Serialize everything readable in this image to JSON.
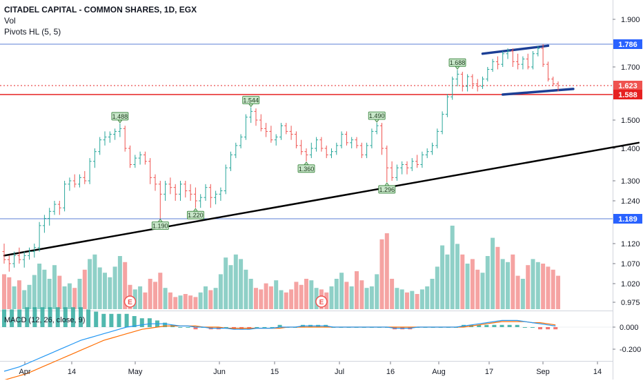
{
  "header": {
    "symbol": "CITADEL CAPITAL - COMMON SHARES, 1D, EGX",
    "vol_label": "Vol",
    "pivots_label": "Pivots HL (5, 5)"
  },
  "macd_label": "MACD (12, 26, close, 9)",
  "colors": {
    "up": "#26a69a",
    "down": "#ef5350",
    "vol_up": "#8fd0c7",
    "vol_down": "#f5a3a2",
    "hline_blue": "#5b7fd6",
    "hline_red": "#e62020",
    "trend": "#000000",
    "channel": "#1c3f95",
    "macd": "#2196f3",
    "signal": "#ff6d00"
  },
  "chart_data": {
    "type": "candlestick",
    "title": "CITADEL CAPITAL - COMMON SHARES, 1D, EGX",
    "x_ticks": [
      "Apr",
      "14",
      "May",
      "Jun",
      "15",
      "Jul",
      "16",
      "Aug",
      "17",
      "Sep",
      "14"
    ],
    "y_ticks": [
      "1.900",
      "1.700",
      "1.500",
      "1.400",
      "1.300",
      "1.240",
      "1.120",
      "1.070",
      "1.020",
      "0.975"
    ],
    "macd_y_ticks": [
      "0.000",
      "-0.200"
    ],
    "ohlc": [
      [
        1.1,
        1.12,
        1.07,
        1.08
      ],
      [
        1.08,
        1.09,
        1.05,
        1.07
      ],
      [
        1.07,
        1.1,
        1.06,
        1.09
      ],
      [
        1.09,
        1.11,
        1.07,
        1.08
      ],
      [
        1.08,
        1.1,
        1.06,
        1.09
      ],
      [
        1.09,
        1.11,
        1.08,
        1.1
      ],
      [
        1.1,
        1.12,
        1.085,
        1.11
      ],
      [
        1.11,
        1.18,
        1.1,
        1.17
      ],
      [
        1.17,
        1.2,
        1.15,
        1.19
      ],
      [
        1.19,
        1.22,
        1.17,
        1.21
      ],
      [
        1.21,
        1.24,
        1.2,
        1.23
      ],
      [
        1.23,
        1.24,
        1.2,
        1.22
      ],
      [
        1.22,
        1.3,
        1.21,
        1.29
      ],
      [
        1.29,
        1.31,
        1.27,
        1.3
      ],
      [
        1.3,
        1.32,
        1.28,
        1.29
      ],
      [
        1.29,
        1.32,
        1.28,
        1.31
      ],
      [
        1.31,
        1.33,
        1.29,
        1.3
      ],
      [
        1.3,
        1.37,
        1.29,
        1.36
      ],
      [
        1.36,
        1.4,
        1.34,
        1.39
      ],
      [
        1.39,
        1.44,
        1.38,
        1.43
      ],
      [
        1.43,
        1.46,
        1.41,
        1.44
      ],
      [
        1.44,
        1.46,
        1.42,
        1.45
      ],
      [
        1.45,
        1.47,
        1.43,
        1.46
      ],
      [
        1.46,
        1.488,
        1.44,
        1.47
      ],
      [
        1.47,
        1.48,
        1.39,
        1.4
      ],
      [
        1.4,
        1.41,
        1.34,
        1.35
      ],
      [
        1.35,
        1.38,
        1.34,
        1.37
      ],
      [
        1.37,
        1.39,
        1.35,
        1.38
      ],
      [
        1.38,
        1.39,
        1.35,
        1.36
      ],
      [
        1.36,
        1.37,
        1.29,
        1.31
      ],
      [
        1.31,
        1.32,
        1.27,
        1.29
      ],
      [
        1.29,
        1.3,
        1.19,
        1.26
      ],
      [
        1.26,
        1.3,
        1.24,
        1.29
      ],
      [
        1.29,
        1.31,
        1.26,
        1.28
      ],
      [
        1.28,
        1.29,
        1.24,
        1.26
      ],
      [
        1.26,
        1.3,
        1.24,
        1.29
      ],
      [
        1.29,
        1.3,
        1.25,
        1.27
      ],
      [
        1.27,
        1.29,
        1.24,
        1.26
      ],
      [
        1.26,
        1.28,
        1.22,
        1.24
      ],
      [
        1.24,
        1.26,
        1.22,
        1.25
      ],
      [
        1.25,
        1.29,
        1.24,
        1.28
      ],
      [
        1.28,
        1.29,
        1.22,
        1.25
      ],
      [
        1.25,
        1.27,
        1.23,
        1.26
      ],
      [
        1.26,
        1.28,
        1.24,
        1.27
      ],
      [
        1.27,
        1.35,
        1.26,
        1.34
      ],
      [
        1.34,
        1.39,
        1.33,
        1.38
      ],
      [
        1.38,
        1.42,
        1.37,
        1.41
      ],
      [
        1.41,
        1.45,
        1.4,
        1.44
      ],
      [
        1.44,
        1.52,
        1.43,
        1.51
      ],
      [
        1.51,
        1.544,
        1.49,
        1.53
      ],
      [
        1.53,
        1.54,
        1.48,
        1.5
      ],
      [
        1.5,
        1.52,
        1.46,
        1.47
      ],
      [
        1.47,
        1.49,
        1.44,
        1.46
      ],
      [
        1.46,
        1.48,
        1.42,
        1.43
      ],
      [
        1.43,
        1.45,
        1.41,
        1.44
      ],
      [
        1.44,
        1.49,
        1.43,
        1.48
      ],
      [
        1.48,
        1.49,
        1.45,
        1.46
      ],
      [
        1.46,
        1.48,
        1.43,
        1.45
      ],
      [
        1.45,
        1.46,
        1.4,
        1.41
      ],
      [
        1.41,
        1.43,
        1.38,
        1.39
      ],
      [
        1.39,
        1.4,
        1.36,
        1.38
      ],
      [
        1.38,
        1.42,
        1.37,
        1.4
      ],
      [
        1.4,
        1.44,
        1.39,
        1.43
      ],
      [
        1.43,
        1.44,
        1.39,
        1.4
      ],
      [
        1.4,
        1.41,
        1.37,
        1.38
      ],
      [
        1.38,
        1.4,
        1.37,
        1.39
      ],
      [
        1.39,
        1.42,
        1.38,
        1.41
      ],
      [
        1.41,
        1.46,
        1.4,
        1.45
      ],
      [
        1.45,
        1.46,
        1.41,
        1.42
      ],
      [
        1.42,
        1.44,
        1.4,
        1.43
      ],
      [
        1.43,
        1.44,
        1.4,
        1.41
      ],
      [
        1.41,
        1.42,
        1.37,
        1.38
      ],
      [
        1.38,
        1.42,
        1.37,
        1.41
      ],
      [
        1.41,
        1.47,
        1.4,
        1.46
      ],
      [
        1.46,
        1.49,
        1.45,
        1.48
      ],
      [
        1.48,
        1.49,
        1.38,
        1.4
      ],
      [
        1.4,
        1.41,
        1.296,
        1.34
      ],
      [
        1.34,
        1.36,
        1.3,
        1.31
      ],
      [
        1.31,
        1.35,
        1.3,
        1.34
      ],
      [
        1.34,
        1.36,
        1.32,
        1.35
      ],
      [
        1.35,
        1.36,
        1.32,
        1.34
      ],
      [
        1.34,
        1.37,
        1.33,
        1.36
      ],
      [
        1.36,
        1.38,
        1.34,
        1.35
      ],
      [
        1.35,
        1.39,
        1.34,
        1.38
      ],
      [
        1.38,
        1.4,
        1.37,
        1.39
      ],
      [
        1.39,
        1.42,
        1.38,
        1.41
      ],
      [
        1.41,
        1.47,
        1.4,
        1.46
      ],
      [
        1.46,
        1.53,
        1.45,
        1.52
      ],
      [
        1.52,
        1.59,
        1.51,
        1.58
      ],
      [
        1.58,
        1.66,
        1.57,
        1.65
      ],
      [
        1.65,
        1.688,
        1.62,
        1.67
      ],
      [
        1.67,
        1.68,
        1.6,
        1.62
      ],
      [
        1.62,
        1.67,
        1.6,
        1.66
      ],
      [
        1.66,
        1.67,
        1.61,
        1.63
      ],
      [
        1.63,
        1.65,
        1.6,
        1.62
      ],
      [
        1.62,
        1.66,
        1.61,
        1.65
      ],
      [
        1.65,
        1.7,
        1.64,
        1.69
      ],
      [
        1.69,
        1.73,
        1.68,
        1.72
      ],
      [
        1.72,
        1.74,
        1.69,
        1.71
      ],
      [
        1.71,
        1.76,
        1.7,
        1.75
      ],
      [
        1.75,
        1.77,
        1.73,
        1.76
      ],
      [
        1.76,
        1.77,
        1.7,
        1.72
      ],
      [
        1.72,
        1.75,
        1.69,
        1.71
      ],
      [
        1.71,
        1.74,
        1.69,
        1.73
      ],
      [
        1.73,
        1.75,
        1.69,
        1.7
      ],
      [
        1.7,
        1.76,
        1.69,
        1.75
      ],
      [
        1.75,
        1.78,
        1.74,
        1.77
      ],
      [
        1.77,
        1.786,
        1.7,
        1.71
      ],
      [
        1.71,
        1.72,
        1.64,
        1.65
      ],
      [
        1.65,
        1.66,
        1.62,
        1.63
      ],
      [
        1.63,
        1.64,
        1.6,
        1.623
      ]
    ],
    "volume": [
      0.46,
      0.42,
      0.3,
      0.38,
      0.25,
      0.32,
      0.45,
      0.6,
      0.52,
      0.4,
      0.58,
      0.44,
      0.3,
      0.34,
      0.28,
      0.4,
      0.52,
      0.66,
      0.72,
      0.55,
      0.48,
      0.42,
      0.56,
      0.7,
      0.62,
      0.32,
      0.26,
      0.3,
      0.22,
      0.4,
      0.36,
      0.48,
      0.28,
      0.22,
      0.16,
      0.18,
      0.2,
      0.18,
      0.16,
      0.22,
      0.3,
      0.25,
      0.28,
      0.46,
      0.68,
      0.58,
      0.72,
      0.66,
      0.52,
      0.4,
      0.28,
      0.26,
      0.34,
      0.3,
      0.38,
      0.25,
      0.22,
      0.26,
      0.36,
      0.32,
      0.4,
      0.38,
      0.28,
      0.26,
      0.22,
      0.3,
      0.4,
      0.48,
      0.36,
      0.3,
      0.5,
      0.38,
      0.28,
      0.3,
      0.46,
      0.92,
      1.0,
      0.4,
      0.28,
      0.26,
      0.22,
      0.24,
      0.2,
      0.26,
      0.3,
      0.4,
      0.56,
      0.84,
      0.72,
      1.1,
      0.86,
      0.72,
      0.6,
      0.66,
      0.52,
      0.48,
      0.7,
      0.94,
      0.82,
      0.66,
      0.62,
      0.72,
      0.44,
      0.4,
      0.58,
      0.66,
      0.62,
      0.6,
      0.56,
      0.52,
      0.44
    ],
    "pivot_labels": [
      {
        "text": "1.488",
        "bar": 23,
        "kind": "high"
      },
      {
        "text": "1.190",
        "bar": 31,
        "kind": "low"
      },
      {
        "text": "1.220",
        "bar": 38,
        "kind": "low"
      },
      {
        "text": "1.544",
        "bar": 49,
        "kind": "high"
      },
      {
        "text": "1.360",
        "bar": 60,
        "kind": "low"
      },
      {
        "text": "1.490",
        "bar": 74,
        "kind": "high"
      },
      {
        "text": "1.296",
        "bar": 76,
        "kind": "low"
      },
      {
        "text": "1.688",
        "bar": 90,
        "kind": "high"
      }
    ],
    "price_labels": [
      {
        "text": "1.786",
        "value": 1.786,
        "color": "#2962ff"
      },
      {
        "text": "1.623",
        "value": 1.623,
        "color": "#ef5350"
      },
      {
        "text": "1.588",
        "value": 1.588,
        "color": "#e62020"
      },
      {
        "text": "1.189",
        "value": 1.189,
        "color": "#2962ff"
      }
    ],
    "horizontal_lines": [
      {
        "value": 1.786,
        "color": "#5b7fd6",
        "style": "solid"
      },
      {
        "value": 1.623,
        "color": "#e62020",
        "style": "dotted"
      },
      {
        "value": 1.588,
        "color": "#e62020",
        "style": "solid"
      },
      {
        "value": 1.189,
        "color": "#5b7fd6",
        "style": "solid"
      }
    ],
    "trendlines": [
      {
        "from": [
          0,
          1.09
        ],
        "to": [
          126,
          1.42
        ],
        "color": "#000000"
      },
      {
        "from": [
          95,
          1.75
        ],
        "to": [
          108,
          1.78
        ],
        "color": "#1c3f95"
      },
      {
        "from": [
          99,
          1.588
        ],
        "to": [
          113,
          1.61
        ],
        "color": "#1c3f95"
      }
    ],
    "earnings_markers": [
      {
        "bar": 25,
        "text": "E"
      },
      {
        "bar": 63,
        "text": "E"
      }
    ],
    "macd_line": [
      -0.4,
      -0.38,
      -0.36,
      -0.33,
      -0.3,
      -0.27,
      -0.24,
      -0.21,
      -0.18,
      -0.15,
      -0.12,
      -0.1,
      -0.08,
      -0.06,
      -0.04,
      -0.02,
      0.0,
      0.01,
      0.02,
      0.03,
      0.03,
      0.03,
      0.02,
      0.01,
      0.01,
      0.0,
      0.0,
      -0.01,
      -0.01,
      -0.01,
      -0.02,
      -0.02,
      -0.02,
      -0.01,
      -0.01,
      -0.01,
      0.0,
      0.0,
      0.0,
      0.01,
      0.01,
      0.01,
      0.01,
      0.0,
      0.0,
      0.0,
      0.0,
      0.0,
      0.0,
      0.0,
      0.0,
      -0.01,
      -0.01,
      -0.01,
      0.0,
      0.0,
      0.0,
      0.0,
      0.0,
      0.0,
      0.01,
      0.02,
      0.03,
      0.04,
      0.05,
      0.06,
      0.06,
      0.06,
      0.05,
      0.04,
      0.03,
      0.02,
      0.01
    ],
    "signal_line": [
      -0.48,
      -0.46,
      -0.44,
      -0.42,
      -0.39,
      -0.36,
      -0.33,
      -0.3,
      -0.27,
      -0.24,
      -0.21,
      -0.18,
      -0.15,
      -0.12,
      -0.1,
      -0.08,
      -0.06,
      -0.04,
      -0.02,
      -0.01,
      0.0,
      0.01,
      0.01,
      0.01,
      0.01,
      0.01,
      0.0,
      0.0,
      0.0,
      -0.01,
      -0.01,
      -0.01,
      -0.01,
      -0.01,
      -0.01,
      -0.01,
      -0.01,
      0.0,
      0.0,
      0.0,
      0.0,
      0.0,
      0.0,
      0.0,
      0.0,
      0.0,
      0.0,
      0.0,
      0.0,
      0.0,
      0.0,
      0.0,
      0.0,
      0.0,
      0.0,
      0.0,
      0.0,
      0.0,
      0.0,
      0.0,
      0.0,
      0.01,
      0.02,
      0.03,
      0.04,
      0.05,
      0.05,
      0.05,
      0.05,
      0.04,
      0.04,
      0.03,
      0.02
    ],
    "y_log_scale": false,
    "grid": false
  }
}
